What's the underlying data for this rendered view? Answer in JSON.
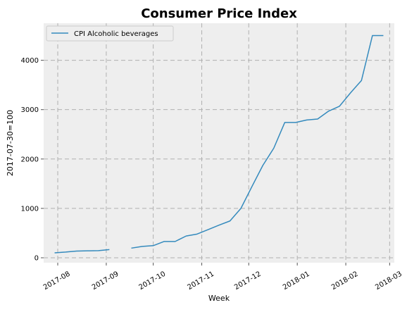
{
  "chart_data": {
    "type": "line",
    "title": "Consumer Price Index",
    "xlabel": "Week",
    "ylabel": "2017-07-30=100",
    "x_axis_type": "date",
    "xlim": [
      "2017-07-23",
      "2018-03-04"
    ],
    "ylim": [
      -100,
      4750
    ],
    "xticks": [
      {
        "date": "2017-08-01",
        "label": "2017-08"
      },
      {
        "date": "2017-09-01",
        "label": "2017-09"
      },
      {
        "date": "2017-10-01",
        "label": "2017-10"
      },
      {
        "date": "2017-11-01",
        "label": "2017-11"
      },
      {
        "date": "2017-12-01",
        "label": "2017-12"
      },
      {
        "date": "2018-01-01",
        "label": "2018-01"
      },
      {
        "date": "2018-02-01",
        "label": "2018-02"
      },
      {
        "date": "2018-03-01",
        "label": "2018-03"
      }
    ],
    "yticks": [
      0,
      1000,
      2000,
      3000,
      4000
    ],
    "grid": true,
    "legend_position": "top-left",
    "series": [
      {
        "name": "CPI Alcoholic beverages",
        "color": "#348abd",
        "points": [
          {
            "x": "2017-07-30",
            "y": 100
          },
          {
            "x": "2017-08-06",
            "y": 115
          },
          {
            "x": "2017-08-13",
            "y": 135
          },
          {
            "x": "2017-08-20",
            "y": 140
          },
          {
            "x": "2017-08-27",
            "y": 145
          },
          {
            "x": "2017-09-03",
            "y": 165
          },
          {
            "x": "2017-09-17",
            "y": 195
          },
          {
            "x": "2017-09-24",
            "y": 230
          },
          {
            "x": "2017-10-01",
            "y": 245
          },
          {
            "x": "2017-10-08",
            "y": 330
          },
          {
            "x": "2017-10-15",
            "y": 330
          },
          {
            "x": "2017-10-22",
            "y": 440
          },
          {
            "x": "2017-10-29",
            "y": 480
          },
          {
            "x": "2017-11-05",
            "y": 570
          },
          {
            "x": "2017-11-12",
            "y": 660
          },
          {
            "x": "2017-11-19",
            "y": 745
          },
          {
            "x": "2017-11-26",
            "y": 1000
          },
          {
            "x": "2017-12-03",
            "y": 1440
          },
          {
            "x": "2017-12-10",
            "y": 1870
          },
          {
            "x": "2017-12-17",
            "y": 2220
          },
          {
            "x": "2017-12-24",
            "y": 2740
          },
          {
            "x": "2017-12-31",
            "y": 2740
          },
          {
            "x": "2018-01-07",
            "y": 2790
          },
          {
            "x": "2018-01-14",
            "y": 2810
          },
          {
            "x": "2018-01-21",
            "y": 2970
          },
          {
            "x": "2018-01-28",
            "y": 3070
          },
          {
            "x": "2018-02-04",
            "y": 3340
          },
          {
            "x": "2018-02-11",
            "y": 3590
          },
          {
            "x": "2018-02-18",
            "y": 4500
          },
          {
            "x": "2018-02-25",
            "y": 4500
          }
        ],
        "gaps_after": [
          "2017-09-03"
        ]
      }
    ]
  }
}
